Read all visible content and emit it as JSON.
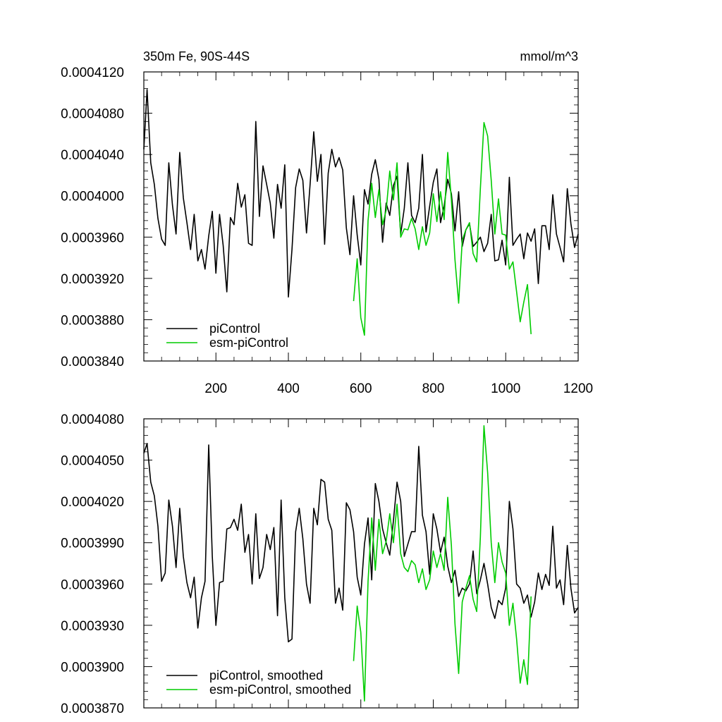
{
  "chart_data": [
    {
      "type": "line",
      "title": "350m Fe, 90S-44S",
      "units": "mmol/m^3",
      "xlim": [
        1,
        1200
      ],
      "ylim": [
        0.000384,
        0.000412
      ],
      "x_tick_labels": [
        "200",
        "400",
        "600",
        "800",
        "1000",
        "1200"
      ],
      "x_ticks": [
        200,
        400,
        600,
        800,
        1000,
        1200
      ],
      "y_tick_labels": [
        "0.0004120",
        "0.0004080",
        "0.0004040",
        "0.0004000",
        "0.0003960",
        "0.0003920",
        "0.0003880",
        "0.0003840"
      ],
      "y_ticks": [
        0.000412,
        0.000408,
        0.000404,
        0.0004,
        0.000396,
        0.000392,
        0.000388,
        0.000384
      ],
      "legend_position": "bottom-left",
      "series": [
        {
          "name": "piControl",
          "color": "#000000",
          "x": [
            1,
            10,
            20,
            30,
            40,
            50,
            60,
            70,
            80,
            90,
            100,
            110,
            120,
            130,
            140,
            150,
            160,
            170,
            180,
            190,
            200,
            210,
            220,
            230,
            240,
            250,
            260,
            270,
            280,
            290,
            300,
            310,
            320,
            330,
            340,
            350,
            360,
            370,
            380,
            390,
            400,
            410,
            420,
            430,
            440,
            450,
            460,
            470,
            480,
            490,
            500,
            510,
            520,
            530,
            540,
            550,
            560,
            570,
            580,
            590,
            600,
            610,
            620,
            630,
            640,
            650,
            660,
            670,
            680,
            690,
            700,
            710,
            720,
            730,
            740,
            750,
            760,
            770,
            780,
            790,
            800,
            810,
            820,
            830,
            840,
            850,
            860,
            870,
            880,
            890,
            900,
            910,
            920,
            930,
            940,
            950,
            960,
            970,
            980,
            990,
            1000,
            1010,
            1020,
            1030,
            1040,
            1050,
            1060,
            1070,
            1080,
            1090,
            1100,
            1110,
            1120,
            1130,
            1140,
            1150,
            1160,
            1170,
            1180,
            1190,
            1200
          ],
          "y": [
            0.0004045,
            0.0004103,
            0.0004032,
            0.0004011,
            0.0003978,
            0.0003958,
            0.0003952,
            0.0004032,
            0.0003991,
            0.0003963,
            0.0004042,
            0.0003998,
            0.0003974,
            0.0003948,
            0.0003982,
            0.0003937,
            0.0003948,
            0.0003929,
            0.0003961,
            0.0003985,
            0.0003925,
            0.0003982,
            0.0003952,
            0.0003907,
            0.0003979,
            0.0003972,
            0.0004012,
            0.0003989,
            0.0004001,
            0.0003954,
            0.0003952,
            0.0004072,
            0.000398,
            0.0004029,
            0.0004011,
            0.0003993,
            0.0003959,
            0.0004011,
            0.0003988,
            0.000403,
            0.0003902,
            0.0003948,
            0.0004008,
            0.0004026,
            0.0004015,
            0.0003964,
            0.0004011,
            0.0004062,
            0.0004014,
            0.000404,
            0.0003953,
            0.0004022,
            0.0004045,
            0.0004028,
            0.0004037,
            0.0004025,
            0.0003969,
            0.0003943,
            0.0004,
            0.0003962,
            0.0003933,
            0.0004006,
            0.0003992,
            0.0004021,
            0.0004035,
            0.0004016,
            0.0003955,
            0.0003993,
            0.0003981,
            0.000401,
            0.0004019,
            0.0003963,
            0.0003988,
            0.0004032,
            0.0003981,
            0.0003974,
            0.0003988,
            0.000404,
            0.0003965,
            0.000399,
            0.0004013,
            0.0004026,
            0.0003974,
            0.000399,
            0.0004016,
            0.0004002,
            0.0003966,
            0.0004004,
            0.0003951,
            0.0003967,
            0.0003973,
            0.0003951,
            0.0003955,
            0.000396,
            0.0003946,
            0.0003954,
            0.0003982,
            0.0003937,
            0.0003938,
            0.0003957,
            0.0003933,
            0.0004018,
            0.0003952,
            0.0003958,
            0.0003963,
            0.0003939,
            0.0003964,
            0.0003956,
            0.0003968,
            0.0003915,
            0.0003971,
            0.0003971,
            0.0003948,
            0.0004001,
            0.0003963,
            0.000395,
            0.0003936,
            0.0004007,
            0.0003973,
            0.000395,
            0.0003963
          ]
        },
        {
          "name": "esm-piControl",
          "color": "#00cc00",
          "x": [
            580,
            590,
            600,
            610,
            620,
            630,
            640,
            650,
            660,
            670,
            680,
            690,
            700,
            710,
            720,
            730,
            740,
            750,
            760,
            770,
            780,
            790,
            800,
            810,
            820,
            830,
            840,
            850,
            860,
            870,
            880,
            890,
            900,
            910,
            920,
            930,
            940,
            950,
            960,
            970,
            980,
            990,
            1000,
            1010,
            1020,
            1030,
            1040,
            1050,
            1060,
            1070
          ],
          "y": [
            0.0003898,
            0.0003939,
            0.0003882,
            0.0003865,
            0.0003976,
            0.0004012,
            0.0003979,
            0.0004006,
            0.0003972,
            0.0003986,
            0.0004024,
            0.0003996,
            0.0004032,
            0.000396,
            0.0003968,
            0.0003967,
            0.0003978,
            0.0003968,
            0.0003948,
            0.000397,
            0.0003952,
            0.0003964,
            0.0004002,
            0.0003975,
            0.0004004,
            0.0003977,
            0.0004042,
            0.0003996,
            0.0003938,
            0.0003896,
            0.0003957,
            0.0003967,
            0.0003974,
            0.0003944,
            0.0003936,
            0.0004007,
            0.0004071,
            0.0004058,
            0.0004015,
            0.0003963,
            0.0003997,
            0.0003963,
            0.0003962,
            0.0003929,
            0.0003936,
            0.0003907,
            0.0003878,
            0.0003897,
            0.0003914,
            0.0003866
          ]
        }
      ]
    },
    {
      "type": "line",
      "xlim": [
        1,
        1200
      ],
      "ylim": [
        0.000387,
        0.000408
      ],
      "x_ticks": [
        200,
        400,
        600,
        800,
        1000,
        1200
      ],
      "y_tick_labels": [
        "0.0004080",
        "0.0004050",
        "0.0004020",
        "0.0003990",
        "0.0003960",
        "0.0003930",
        "0.0003900",
        "0.0003870"
      ],
      "y_ticks": [
        0.000408,
        0.000405,
        0.000402,
        0.000399,
        0.000396,
        0.000393,
        0.00039,
        0.000387
      ],
      "legend_position": "bottom-left",
      "series": [
        {
          "name": "piControl, smoothed",
          "color": "#000000",
          "x": [
            1,
            10,
            20,
            30,
            40,
            50,
            60,
            70,
            80,
            90,
            100,
            110,
            120,
            130,
            140,
            150,
            160,
            170,
            180,
            190,
            200,
            210,
            220,
            230,
            240,
            250,
            260,
            270,
            280,
            290,
            300,
            310,
            320,
            330,
            340,
            350,
            360,
            370,
            380,
            390,
            400,
            410,
            420,
            430,
            440,
            450,
            460,
            470,
            480,
            490,
            500,
            510,
            520,
            530,
            540,
            550,
            560,
            570,
            580,
            590,
            600,
            610,
            620,
            630,
            640,
            650,
            660,
            670,
            680,
            690,
            700,
            710,
            720,
            730,
            740,
            750,
            760,
            770,
            780,
            790,
            800,
            810,
            820,
            830,
            840,
            850,
            860,
            870,
            880,
            890,
            900,
            910,
            920,
            930,
            940,
            950,
            960,
            970,
            980,
            990,
            1000,
            1010,
            1020,
            1030,
            1040,
            1050,
            1060,
            1070,
            1080,
            1090,
            1100,
            1110,
            1120,
            1130,
            1140,
            1150,
            1160,
            1170,
            1180,
            1190,
            1200
          ],
          "y": [
            0.0004055,
            0.0004062,
            0.0004034,
            0.0004024,
            0.0004002,
            0.0003962,
            0.0003968,
            0.0004021,
            0.0004002,
            0.0003972,
            0.0004015,
            0.000398,
            0.0003961,
            0.000395,
            0.0003965,
            0.0003928,
            0.000395,
            0.0003962,
            0.0004061,
            0.000398,
            0.000393,
            0.0003961,
            0.0003962,
            0.0004,
            0.0004001,
            0.0004007,
            0.0003999,
            0.0004018,
            0.0003983,
            0.0003996,
            0.000396,
            0.0004011,
            0.0003964,
            0.0003972,
            0.0003996,
            0.0003985,
            0.0004001,
            0.0003937,
            0.0004021,
            0.000395,
            0.0003918,
            0.000392,
            0.0003998,
            0.0004015,
            0.0003993,
            0.000396,
            0.0003946,
            0.0004015,
            0.0004003,
            0.0004036,
            0.0004034,
            0.0004007,
            0.0003999,
            0.0003946,
            0.0003957,
            0.0003941,
            0.0004019,
            0.0004014,
            0.0003998,
            0.0003965,
            0.0003952,
            0.0003989,
            0.0004008,
            0.0003963,
            0.0004033,
            0.000402,
            0.0004,
            0.000399,
            0.0003981,
            0.0004006,
            0.0004034,
            0.000402,
            0.000398,
            0.0003989,
            0.0003998,
            0.0003998,
            0.000406,
            0.000401,
            0.0003998,
            0.0003967,
            0.0004011,
            0.0004,
            0.0003983,
            0.0003994,
            0.0003973,
            0.0003961,
            0.000397,
            0.0003951,
            0.0003957,
            0.0003955,
            0.000396,
            0.0003984,
            0.0003953,
            0.0003963,
            0.0003975,
            0.000396,
            0.0003943,
            0.0003935,
            0.0003948,
            0.0003945,
            0.0003957,
            0.000402,
            0.0004,
            0.000396,
            0.0003957,
            0.0003946,
            0.0003952,
            0.0003936,
            0.0003947,
            0.0003968,
            0.0003956,
            0.0003967,
            0.0003959,
            0.0004002,
            0.0003957,
            0.0003963,
            0.0003945,
            0.0003988,
            0.0003957,
            0.0003939,
            0.0003943
          ]
        },
        {
          "name": "esm-piControl, smoothed",
          "color": "#00cc00",
          "x": [
            580,
            590,
            600,
            610,
            620,
            630,
            640,
            650,
            660,
            670,
            680,
            690,
            700,
            710,
            720,
            730,
            740,
            750,
            760,
            770,
            780,
            790,
            800,
            810,
            820,
            830,
            840,
            850,
            860,
            870,
            880,
            890,
            900,
            910,
            920,
            930,
            940,
            950,
            960,
            970,
            980,
            990,
            1000,
            1010,
            1020,
            1030,
            1040,
            1050,
            1060,
            1070
          ],
          "y": [
            0.0003904,
            0.0003944,
            0.0003925,
            0.0003875,
            0.0003962,
            0.0004008,
            0.000397,
            0.0004007,
            0.0003982,
            0.0003991,
            0.0004011,
            0.000399,
            0.0004018,
            0.0003982,
            0.0003972,
            0.0003969,
            0.0003977,
            0.0003974,
            0.0003961,
            0.0003971,
            0.0003956,
            0.0003963,
            0.0003984,
            0.0003972,
            0.0003982,
            0.000397,
            0.0004023,
            0.0003988,
            0.0003931,
            0.0003895,
            0.0003947,
            0.0003957,
            0.0003966,
            0.0003949,
            0.000394,
            0.0003994,
            0.0004075,
            0.0004041,
            0.000399,
            0.0003961,
            0.000399,
            0.0003976,
            0.0003968,
            0.000393,
            0.0003946,
            0.000392,
            0.0003888,
            0.0003905,
            0.0003887,
            0.0003951
          ]
        }
      ]
    }
  ]
}
